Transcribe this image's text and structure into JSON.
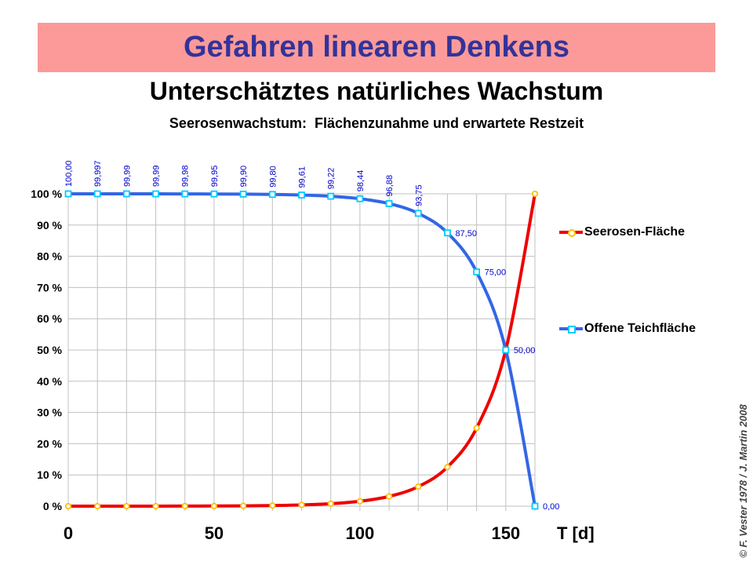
{
  "banner": {
    "title": "Gefahren linearen Denkens"
  },
  "titles": {
    "main": "Unterschätztes natürliches Wachstum",
    "sub": "Seerosenwachstum:  Flächenzunahme und erwartete Restzeit"
  },
  "credit": "© F. Vester 1978 / J. Martin 2008",
  "colors": {
    "banner_bg": "#fc9a99",
    "banner_text": "#333399",
    "grid": "#c0c0c0",
    "series_red": "#ee0000",
    "series_blue": "#3366e6",
    "marker_yellow": "#ffc000",
    "marker_cyan": "#00ccff",
    "point_label_blue": "#0000cc"
  },
  "chart_data": {
    "type": "line",
    "title": "Seerosenwachstum:  Flächenzunahme und erwartete Restzeit",
    "xlabel": "T [d]",
    "ylabel": "",
    "xlim": [
      0,
      160
    ],
    "ylim": [
      0,
      100
    ],
    "grid": true,
    "grid_step_x": 10,
    "grid_step_y": 10,
    "legend_position": "right",
    "x_ticks": [
      {
        "value": 0,
        "label": "0"
      },
      {
        "value": 50,
        "label": "50"
      },
      {
        "value": 100,
        "label": "100"
      },
      {
        "value": 150,
        "label": "150"
      }
    ],
    "y_ticks": [
      {
        "value": 100,
        "label": "100 %"
      },
      {
        "value": 90,
        "label": "90 %"
      },
      {
        "value": 80,
        "label": "80 %"
      },
      {
        "value": 70,
        "label": "70 %"
      },
      {
        "value": 60,
        "label": "60 %"
      },
      {
        "value": 50,
        "label": "50 %"
      },
      {
        "value": 40,
        "label": "40 %"
      },
      {
        "value": 30,
        "label": "30 %"
      },
      {
        "value": 20,
        "label": "20 %"
      },
      {
        "value": 10,
        "label": "10 %"
      },
      {
        "value": 0,
        "label": "0 %"
      }
    ],
    "x": [
      0,
      10,
      20,
      30,
      40,
      50,
      60,
      70,
      80,
      90,
      100,
      110,
      120,
      130,
      140,
      150,
      160
    ],
    "series": [
      {
        "name": "Seerosen-Fläche",
        "color": "#ee0000",
        "marker": "circle",
        "marker_color": "#ffc000",
        "values": [
          0.0015,
          0.003,
          0.006,
          0.012,
          0.024,
          0.049,
          0.098,
          0.195,
          0.391,
          0.781,
          1.563,
          3.125,
          6.25,
          12.5,
          25,
          50,
          100
        ]
      },
      {
        "name": "Offene Teichfläche",
        "color": "#3366e6",
        "marker": "square",
        "marker_color": "#00ccff",
        "values": [
          99.9985,
          99.997,
          99.994,
          99.988,
          99.976,
          99.951,
          99.902,
          99.805,
          99.609,
          99.219,
          98.438,
          96.875,
          93.75,
          87.5,
          75,
          50,
          0
        ],
        "point_labels": [
          "100,00",
          "99,997",
          "99,99",
          "99,99",
          "99,98",
          "99,95",
          "99,90",
          "99,80",
          "99,61",
          "99,22",
          "98,44",
          "96,88",
          "93,75",
          "87,50",
          "75,00",
          "50,00",
          "0,00"
        ],
        "rotated_labels_count": 13,
        "label_color": "#0000cc"
      }
    ]
  },
  "legend": {
    "items": [
      {
        "label": "Seerosen-Fläche"
      },
      {
        "label": "Offene Teichfläche"
      }
    ]
  }
}
